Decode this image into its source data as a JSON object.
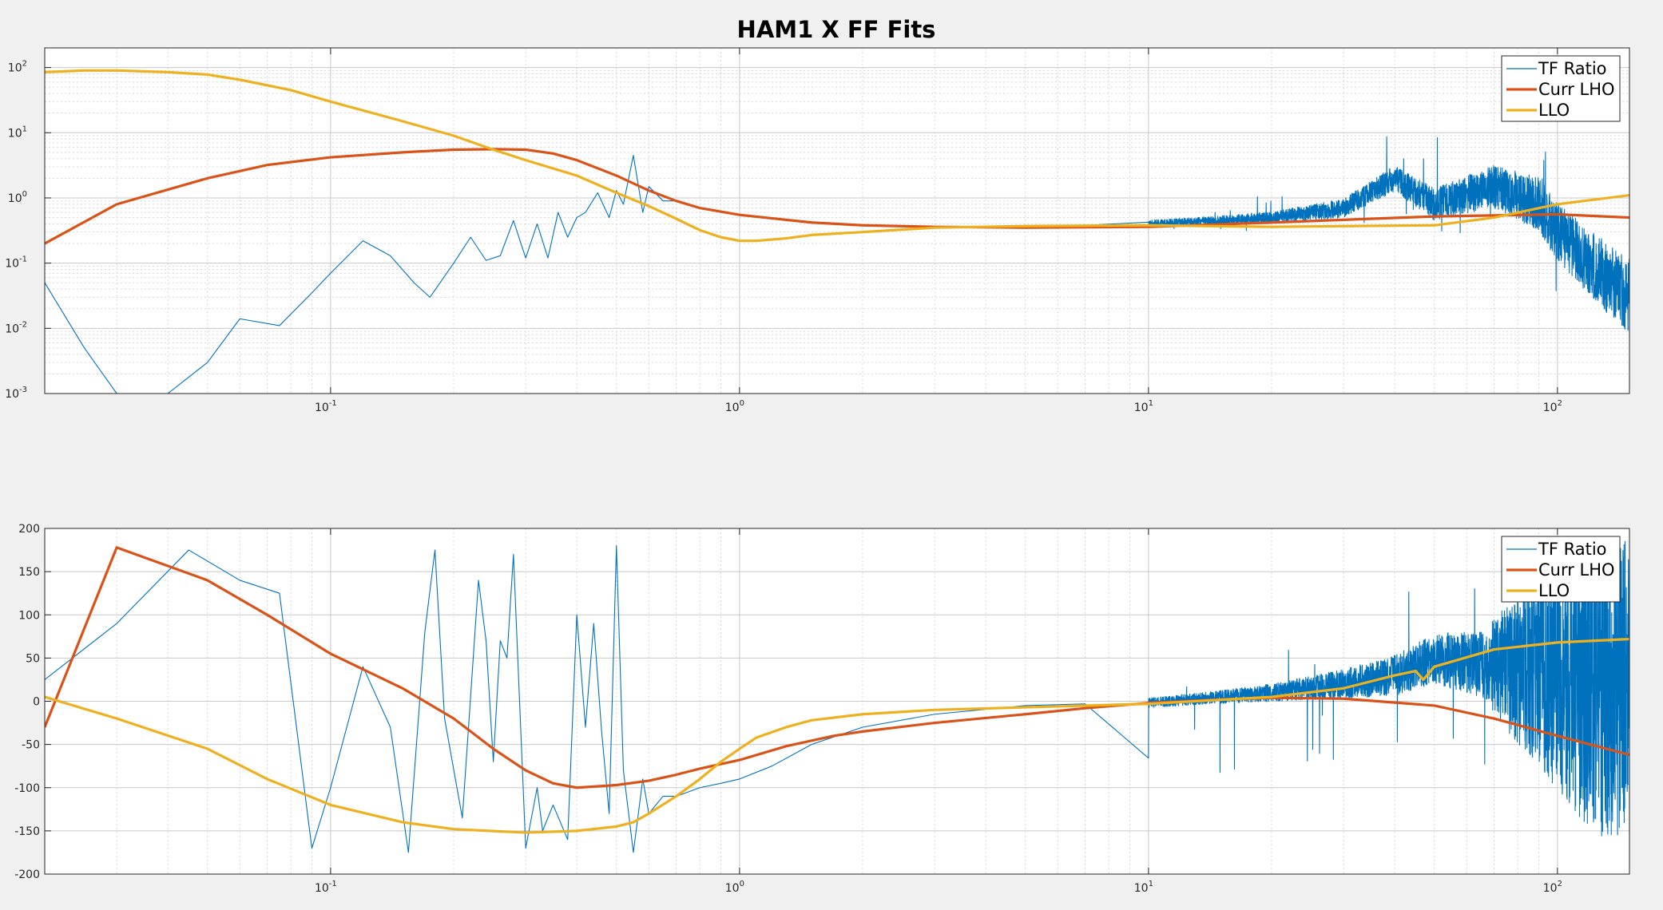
{
  "chart_data": [
    {
      "type": "line",
      "title": "HAM1 X FF Fits",
      "xlabel": "",
      "ylabel": "",
      "xscale": "log",
      "yscale": "log",
      "xlim": [
        0.02,
        150
      ],
      "ylim": [
        0.001,
        200
      ],
      "x_tick_labels": [
        {
          "base": "10",
          "exp": "-1"
        },
        {
          "base": "10",
          "exp": "0"
        },
        {
          "base": "10",
          "exp": "1"
        },
        {
          "base": "10",
          "exp": "2"
        }
      ],
      "y_tick_labels": [
        {
          "base": "10",
          "exp": "-3"
        },
        {
          "base": "10",
          "exp": "-2"
        },
        {
          "base": "10",
          "exp": "-1"
        },
        {
          "base": "10",
          "exp": "0"
        },
        {
          "base": "10",
          "exp": "1"
        },
        {
          "base": "10",
          "exp": "2"
        }
      ],
      "grid": true,
      "legend_position": "top-right",
      "series": [
        {
          "name": "TF Ratio",
          "color": "#0072BD",
          "noise_from_x": 10,
          "x": [
            0.02,
            0.025,
            0.03,
            0.04,
            0.05,
            0.06,
            0.075,
            0.09,
            0.1,
            0.12,
            0.14,
            0.16,
            0.175,
            0.2,
            0.22,
            0.24,
            0.26,
            0.28,
            0.3,
            0.32,
            0.34,
            0.36,
            0.38,
            0.4,
            0.42,
            0.45,
            0.48,
            0.5,
            0.52,
            0.55,
            0.58,
            0.6,
            0.65,
            0.7,
            0.8,
            0.9,
            1.0,
            1.5,
            2,
            3,
            5,
            7,
            10,
            15,
            20,
            30,
            40,
            50,
            70,
            90,
            100,
            120,
            150
          ],
          "y": [
            0.05,
            0.005,
            0.001,
            0.001,
            0.003,
            0.014,
            0.011,
            0.035,
            0.07,
            0.22,
            0.13,
            0.05,
            0.03,
            0.1,
            0.25,
            0.11,
            0.13,
            0.45,
            0.12,
            0.4,
            0.12,
            0.6,
            0.25,
            0.5,
            0.6,
            1.2,
            0.5,
            1.3,
            0.8,
            4.5,
            0.6,
            1.5,
            0.9,
            0.9,
            0.7,
            0.6,
            0.55,
            0.42,
            0.38,
            0.36,
            0.37,
            0.38,
            0.4,
            0.45,
            0.5,
            0.7,
            2.0,
            0.8,
            1.5,
            0.8,
            0.3,
            0.1,
            0.03
          ]
        },
        {
          "name": "Curr LHO",
          "color": "#D95319",
          "x": [
            0.02,
            0.03,
            0.05,
            0.07,
            0.1,
            0.15,
            0.2,
            0.25,
            0.3,
            0.35,
            0.4,
            0.5,
            0.6,
            0.7,
            0.8,
            1.0,
            1.5,
            2,
            3,
            5,
            10,
            20,
            50,
            100,
            150
          ],
          "y": [
            0.2,
            0.8,
            2.0,
            3.2,
            4.2,
            5.0,
            5.5,
            5.6,
            5.5,
            4.8,
            3.8,
            2.2,
            1.3,
            0.9,
            0.7,
            0.55,
            0.42,
            0.38,
            0.36,
            0.35,
            0.36,
            0.42,
            0.52,
            0.56,
            0.5
          ]
        },
        {
          "name": "LLO",
          "color": "#EDB120",
          "x": [
            0.02,
            0.025,
            0.03,
            0.04,
            0.05,
            0.06,
            0.08,
            0.1,
            0.12,
            0.15,
            0.2,
            0.25,
            0.3,
            0.4,
            0.5,
            0.6,
            0.7,
            0.8,
            0.9,
            1.0,
            1.1,
            1.3,
            1.5,
            2,
            3,
            5,
            10,
            20,
            30,
            50,
            70,
            100,
            150
          ],
          "y": [
            85,
            90,
            90,
            85,
            78,
            65,
            45,
            30,
            22,
            15,
            9,
            5.5,
            3.8,
            2.2,
            1.2,
            0.75,
            0.48,
            0.32,
            0.25,
            0.22,
            0.22,
            0.24,
            0.27,
            0.3,
            0.35,
            0.37,
            0.38,
            0.36,
            0.37,
            0.38,
            0.5,
            0.8,
            1.1
          ]
        }
      ]
    },
    {
      "type": "line",
      "title": "",
      "xlabel": "",
      "ylabel": "",
      "xscale": "log",
      "yscale": "linear",
      "xlim": [
        0.02,
        150
      ],
      "ylim": [
        -200,
        200
      ],
      "x_tick_labels": [
        {
          "base": "10",
          "exp": "-1"
        },
        {
          "base": "10",
          "exp": "0"
        },
        {
          "base": "10",
          "exp": "1"
        },
        {
          "base": "10",
          "exp": "2"
        }
      ],
      "y_ticks": [
        -200,
        -150,
        -100,
        -50,
        0,
        50,
        100,
        150,
        200
      ],
      "grid": true,
      "legend_position": "top-right",
      "series": [
        {
          "name": "TF Ratio",
          "color": "#0072BD",
          "noise_from_x": 10,
          "x": [
            0.02,
            0.03,
            0.045,
            0.06,
            0.075,
            0.09,
            0.1,
            0.12,
            0.14,
            0.155,
            0.17,
            0.18,
            0.19,
            0.21,
            0.23,
            0.24,
            0.25,
            0.26,
            0.27,
            0.28,
            0.3,
            0.32,
            0.33,
            0.35,
            0.38,
            0.4,
            0.42,
            0.44,
            0.46,
            0.48,
            0.5,
            0.52,
            0.55,
            0.58,
            0.6,
            0.65,
            0.7,
            0.8,
            0.9,
            1.0,
            1.2,
            1.5,
            2,
            3,
            5,
            7,
            10,
            15,
            20,
            30,
            40,
            50,
            70,
            100,
            150
          ],
          "y": [
            25,
            90,
            175,
            140,
            125,
            -170,
            -100,
            40,
            -30,
            -175,
            80,
            175,
            -20,
            -135,
            140,
            70,
            -70,
            70,
            50,
            170,
            -170,
            -100,
            -150,
            -120,
            -160,
            100,
            -30,
            90,
            -35,
            -130,
            180,
            -80,
            -175,
            -90,
            -130,
            -110,
            -110,
            -100,
            -95,
            -90,
            -75,
            -50,
            -30,
            -15,
            -5,
            -3,
            -2,
            5,
            10,
            20,
            30,
            50,
            40,
            30,
            20
          ]
        },
        {
          "name": "Curr LHO",
          "color": "#D95319",
          "x": [
            0.02,
            0.03,
            0.05,
            0.07,
            0.1,
            0.15,
            0.2,
            0.25,
            0.3,
            0.35,
            0.4,
            0.5,
            0.6,
            0.7,
            0.8,
            1.0,
            1.3,
            1.7,
            2,
            3,
            5,
            7,
            10,
            15,
            20,
            30,
            50,
            70,
            100,
            150
          ],
          "y": [
            -30,
            178,
            140,
            100,
            55,
            15,
            -20,
            -55,
            -80,
            -95,
            -100,
            -97,
            -92,
            -85,
            -78,
            -68,
            -52,
            -40,
            -35,
            -25,
            -15,
            -8,
            -2,
            2,
            4,
            3,
            -5,
            -20,
            -40,
            -62
          ]
        },
        {
          "name": "LLO",
          "color": "#EDB120",
          "x": [
            0.02,
            0.03,
            0.05,
            0.07,
            0.1,
            0.15,
            0.2,
            0.3,
            0.4,
            0.5,
            0.55,
            0.6,
            0.7,
            0.8,
            0.9,
            1.0,
            1.1,
            1.3,
            1.5,
            2,
            3,
            5,
            10,
            20,
            30,
            40,
            45,
            47,
            50,
            70,
            100,
            150
          ],
          "y": [
            5,
            -20,
            -55,
            -90,
            -120,
            -140,
            -148,
            -152,
            -150,
            -145,
            -140,
            -130,
            -110,
            -90,
            -70,
            -55,
            -42,
            -30,
            -22,
            -15,
            -10,
            -7,
            -3,
            5,
            15,
            30,
            35,
            25,
            40,
            60,
            68,
            72
          ]
        }
      ]
    }
  ]
}
